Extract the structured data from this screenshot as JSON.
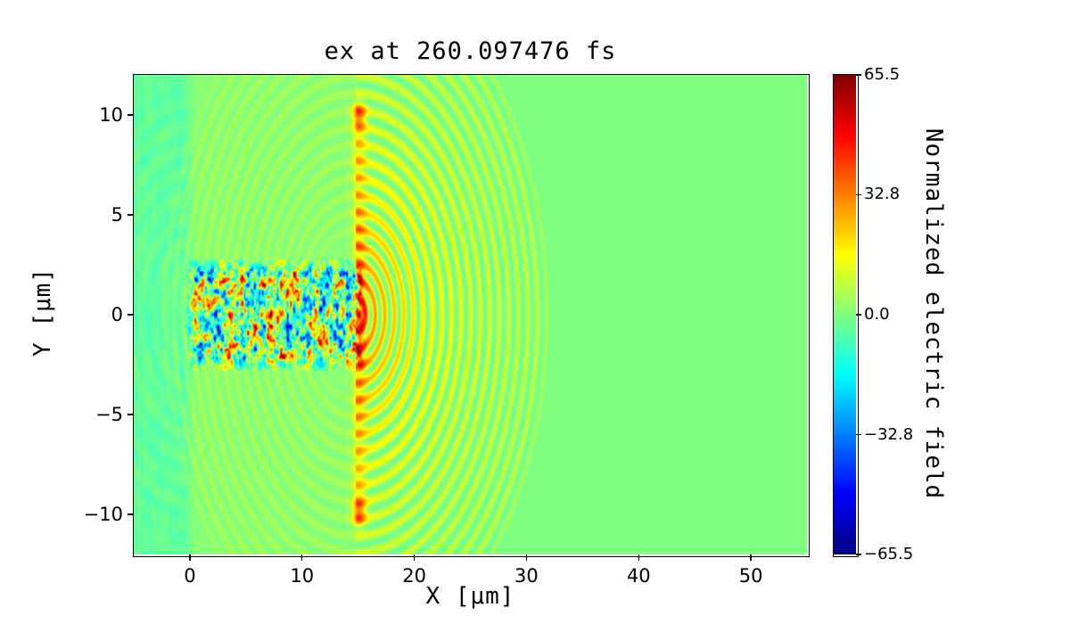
{
  "chart_data": {
    "type": "heatmap",
    "title": "ex at 260.097476 fs",
    "quantity": "ex",
    "time_fs": 260.097476,
    "xlabel": "X [μm]",
    "ylabel": "Y [μm]",
    "xlim": [
      -5,
      55
    ],
    "ylim": [
      -12,
      12
    ],
    "grid": false,
    "x_ticks": [
      {
        "value": 0,
        "label": "0"
      },
      {
        "value": 10,
        "label": "10"
      },
      {
        "value": 20,
        "label": "20"
      },
      {
        "value": 30,
        "label": "30"
      },
      {
        "value": 40,
        "label": "40"
      },
      {
        "value": 50,
        "label": "50"
      }
    ],
    "y_ticks": [
      {
        "value": 10,
        "label": "10"
      },
      {
        "value": 5,
        "label": "5"
      },
      {
        "value": 0,
        "label": "0"
      },
      {
        "value": -5,
        "label": "−5"
      },
      {
        "value": -10,
        "label": "−10"
      }
    ],
    "colormap": "jet",
    "clim": [
      -65.5,
      65.5
    ],
    "colorbar": {
      "label": "Normalized electric field",
      "position": "right",
      "ticks": [
        {
          "value": 65.5,
          "label": "65.5"
        },
        {
          "value": 32.8,
          "label": "32.8"
        },
        {
          "value": 0,
          "label": "0.0"
        },
        {
          "value": -32.8,
          "label": "−32.8"
        },
        {
          "value": -65.5,
          "label": "−65.5"
        }
      ]
    },
    "features": {
      "background_value": 0,
      "laser_front_x_um": 15.1,
      "laser_sigma_x_um": 0.42,
      "laser_amplitude": 30,
      "laser_y_extent_um": 10.2,
      "wake_region": {
        "x_um": [
          0,
          15.3
        ],
        "y_um": [
          -2.6,
          2.6
        ],
        "amplitude": 60
      },
      "ripples": {
        "center_x_um": 14.8,
        "wavelength_um": 0.85,
        "max_radius_um": 17.8,
        "amplitude": 26
      },
      "left_band": {
        "x_max_um": 0.3,
        "value": -3.5,
        "ripple_wavelength_um": 1.15
      },
      "mid_tint_value": 1.2
    }
  }
}
